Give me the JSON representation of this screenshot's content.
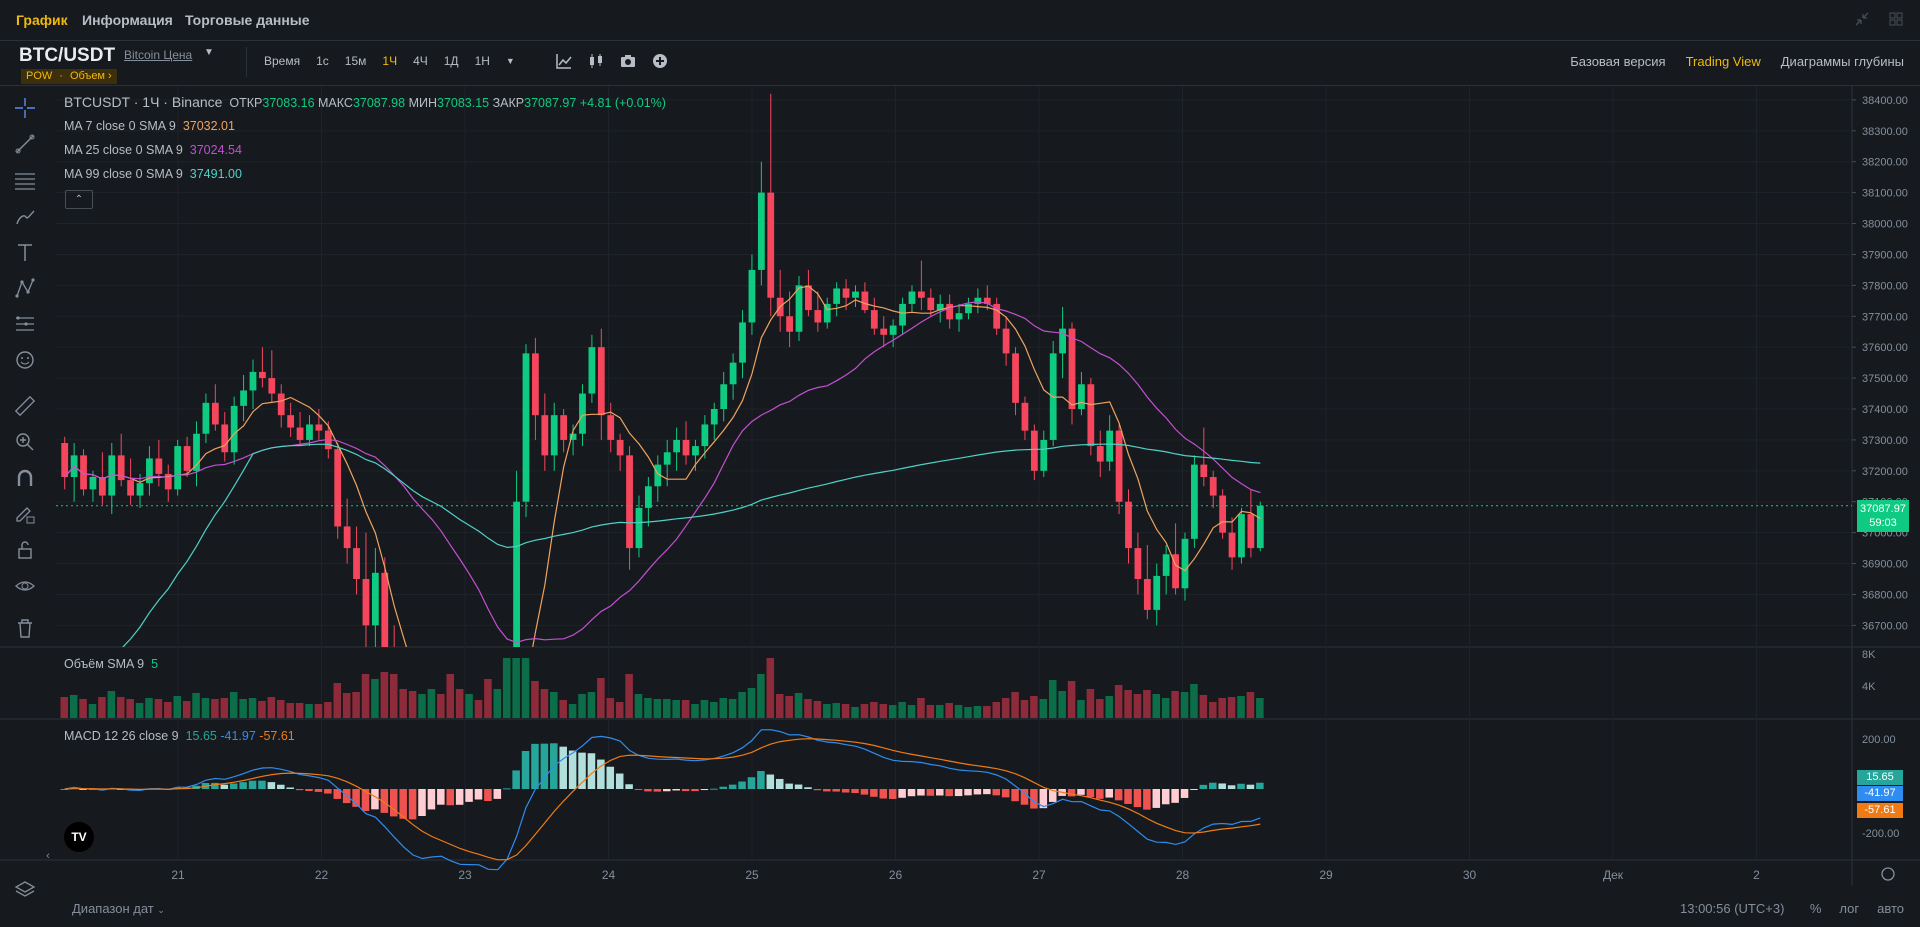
{
  "top_tabs": [
    {
      "label": "График",
      "active": true
    },
    {
      "label": "Информация",
      "active": false
    },
    {
      "label": "Торговые данные",
      "active": false
    }
  ],
  "symbol": {
    "pair": "BTC/USDT",
    "link": "Bitcoin Цена",
    "tags": [
      "POW",
      "·",
      "Объем ›"
    ]
  },
  "intervals": [
    {
      "label": "Время",
      "active": false
    },
    {
      "label": "1с",
      "active": false
    },
    {
      "label": "15м",
      "active": false
    },
    {
      "label": "1Ч",
      "active": true
    },
    {
      "label": "4Ч",
      "active": false
    },
    {
      "label": "1Д",
      "active": false
    },
    {
      "label": "1Н",
      "active": false
    }
  ],
  "views": [
    {
      "label": "Базовая версия",
      "active": false
    },
    {
      "label": "Trading View",
      "active": true
    },
    {
      "label": "Диаграммы глубины",
      "active": false
    }
  ],
  "legend": {
    "ticker": "BTCUSDT · 1Ч · Binance",
    "open_label": "ОТКР",
    "open": "37083.16",
    "high_label": "МАКС",
    "high": "37087.98",
    "low_label": "МИН",
    "low": "37083.15",
    "close_label": "ЗАКР",
    "close": "37087.97",
    "change": "+4.81 (+0.01%)",
    "ma7_label": "MA 7 close 0 SMA 9",
    "ma7_value": "37032.01",
    "ma25_label": "MA 25 close 0 SMA 9",
    "ma25_value": "37024.54",
    "ma99_label": "MA 99 close 0 SMA 9",
    "ma99_value": "37491.00",
    "collapse": "⌃",
    "volume_label": "Объём SMA 9",
    "volume_value": "5",
    "macd_label": "MACD 12 26 close 9",
    "macd_hist": "15.65",
    "macd_line": "-41.97",
    "macd_signal": "-57.61"
  },
  "price_tag": {
    "price": "37087.97",
    "countdown": "59:03"
  },
  "macd_tags": {
    "hist": "15.65",
    "macd": "-41.97",
    "signal": "-57.61"
  },
  "price_axis": [
    "38400.00",
    "38300.00",
    "38200.00",
    "38100.00",
    "38000.00",
    "37900.00",
    "37800.00",
    "37700.00",
    "37600.00",
    "37500.00",
    "37400.00",
    "37300.00",
    "37200.00",
    "37100.00",
    "37000.00",
    "36900.00",
    "36800.00",
    "36700.00"
  ],
  "volume_axis": [
    "8K",
    "4K"
  ],
  "macd_axis": [
    "200.00",
    "-200.00"
  ],
  "time_axis": [
    "21",
    "22",
    "23",
    "24",
    "25",
    "26",
    "27",
    "28",
    "29",
    "30",
    "Дек",
    "2"
  ],
  "bottom": {
    "date_range": "Диапазон дат",
    "clock": "13:00:56 (UTC+3)",
    "scale_buttons": [
      "%",
      "лог",
      "авто"
    ]
  },
  "colors": {
    "up": "#0ecb81",
    "down": "#f6465d",
    "ma7": "#f0a35e",
    "ma25": "#c44fd1",
    "ma99": "#4fd1c5",
    "accent": "#f0b90b",
    "macd": "#2f8cf0",
    "signal": "#f07b15"
  },
  "chart_data": {
    "type": "candlestick",
    "interval": "1h",
    "price_range": [
      36630,
      38445
    ],
    "candles_ohlc": [
      [
        37290,
        37310,
        37140,
        37180
      ],
      [
        37180,
        37290,
        37100,
        37250
      ],
      [
        37250,
        37270,
        37120,
        37140
      ],
      [
        37140,
        37200,
        37100,
        37180
      ],
      [
        37180,
        37260,
        37090,
        37120
      ],
      [
        37120,
        37290,
        37060,
        37250
      ],
      [
        37250,
        37320,
        37150,
        37170
      ],
      [
        37170,
        37240,
        37090,
        37120
      ],
      [
        37120,
        37190,
        37080,
        37160
      ],
      [
        37160,
        37280,
        37120,
        37240
      ],
      [
        37240,
        37300,
        37150,
        37190
      ],
      [
        37190,
        37220,
        37100,
        37140
      ],
      [
        37140,
        37300,
        37120,
        37280
      ],
      [
        37280,
        37310,
        37180,
        37200
      ],
      [
        37200,
        37360,
        37150,
        37320
      ],
      [
        37320,
        37450,
        37290,
        37420
      ],
      [
        37420,
        37480,
        37330,
        37350
      ],
      [
        37350,
        37390,
        37230,
        37260
      ],
      [
        37260,
        37440,
        37220,
        37410
      ],
      [
        37410,
        37510,
        37360,
        37460
      ],
      [
        37460,
        37560,
        37400,
        37520
      ],
      [
        37520,
        37600,
        37470,
        37500
      ],
      [
        37500,
        37590,
        37420,
        37450
      ],
      [
        37450,
        37480,
        37340,
        37380
      ],
      [
        37380,
        37420,
        37310,
        37340
      ],
      [
        37340,
        37390,
        37280,
        37300
      ],
      [
        37300,
        37380,
        37280,
        37350
      ],
      [
        37350,
        37400,
        37300,
        37330
      ],
      [
        37330,
        37360,
        37240,
        37270
      ],
      [
        37270,
        37290,
        36980,
        37020
      ],
      [
        37020,
        37110,
        36900,
        36950
      ],
      [
        36950,
        37020,
        36800,
        36850
      ],
      [
        36850,
        37000,
        36600,
        36700
      ],
      [
        36700,
        36950,
        36600,
        36870
      ],
      [
        36870,
        36920,
        36500,
        36550
      ],
      [
        36550,
        36700,
        36300,
        36400
      ],
      [
        36400,
        36500,
        36250,
        36300
      ],
      [
        36300,
        36380,
        36150,
        36250
      ],
      [
        36250,
        36400,
        36200,
        36350
      ],
      [
        36350,
        36550,
        36300,
        36500
      ],
      [
        36500,
        36600,
        36400,
        36450
      ],
      [
        36450,
        36500,
        36100,
        36180
      ],
      [
        36180,
        36300,
        36050,
        36150
      ],
      [
        36150,
        36280,
        36080,
        36220
      ],
      [
        36220,
        36260,
        36120,
        36180
      ],
      [
        36180,
        36250,
        35900,
        35950
      ],
      [
        35950,
        36100,
        35850,
        36050
      ],
      [
        36050,
        36600,
        36000,
        36500
      ],
      [
        36500,
        37200,
        36450,
        37100
      ],
      [
        37100,
        37610,
        37050,
        37580
      ],
      [
        37580,
        37630,
        37300,
        37380
      ],
      [
        37380,
        37450,
        37200,
        37250
      ],
      [
        37250,
        37420,
        37200,
        37380
      ],
      [
        37380,
        37400,
        37260,
        37300
      ],
      [
        37300,
        37350,
        37250,
        37320
      ],
      [
        37320,
        37480,
        37280,
        37450
      ],
      [
        37450,
        37640,
        37420,
        37600
      ],
      [
        37600,
        37660,
        37300,
        37380
      ],
      [
        37380,
        37420,
        37260,
        37300
      ],
      [
        37300,
        37320,
        37200,
        37250
      ],
      [
        37250,
        37280,
        36880,
        36950
      ],
      [
        36950,
        37120,
        36920,
        37080
      ],
      [
        37080,
        37180,
        37020,
        37150
      ],
      [
        37150,
        37250,
        37100,
        37220
      ],
      [
        37220,
        37300,
        37150,
        37260
      ],
      [
        37260,
        37340,
        37200,
        37300
      ],
      [
        37300,
        37360,
        37220,
        37250
      ],
      [
        37250,
        37300,
        37200,
        37280
      ],
      [
        37280,
        37380,
        37240,
        37350
      ],
      [
        37350,
        37420,
        37300,
        37400
      ],
      [
        37400,
        37520,
        37360,
        37480
      ],
      [
        37480,
        37580,
        37430,
        37550
      ],
      [
        37550,
        37720,
        37500,
        37680
      ],
      [
        37680,
        37900,
        37640,
        37850
      ],
      [
        37850,
        38200,
        37800,
        38100
      ],
      [
        38100,
        38420,
        37700,
        37760
      ],
      [
        37760,
        37850,
        37650,
        37700
      ],
      [
        37700,
        37780,
        37600,
        37650
      ],
      [
        37650,
        37830,
        37620,
        37800
      ],
      [
        37800,
        37850,
        37700,
        37720
      ],
      [
        37720,
        37780,
        37650,
        37680
      ],
      [
        37680,
        37760,
        37660,
        37740
      ],
      [
        37740,
        37810,
        37700,
        37790
      ],
      [
        37790,
        37820,
        37720,
        37760
      ],
      [
        37760,
        37800,
        37730,
        37780
      ],
      [
        37780,
        37810,
        37710,
        37720
      ],
      [
        37720,
        37760,
        37640,
        37660
      ],
      [
        37660,
        37700,
        37600,
        37640
      ],
      [
        37640,
        37690,
        37600,
        37670
      ],
      [
        37670,
        37760,
        37640,
        37740
      ],
      [
        37740,
        37800,
        37710,
        37780
      ],
      [
        37780,
        37880,
        37720,
        37760
      ],
      [
        37760,
        37790,
        37700,
        37720
      ],
      [
        37720,
        37770,
        37680,
        37740
      ],
      [
        37740,
        37770,
        37660,
        37690
      ],
      [
        37690,
        37740,
        37650,
        37710
      ],
      [
        37710,
        37760,
        37690,
        37740
      ],
      [
        37740,
        37790,
        37710,
        37760
      ],
      [
        37760,
        37800,
        37720,
        37740
      ],
      [
        37740,
        37760,
        37640,
        37660
      ],
      [
        37660,
        37700,
        37540,
        37580
      ],
      [
        37580,
        37600,
        37380,
        37420
      ],
      [
        37420,
        37440,
        37300,
        37330
      ],
      [
        37330,
        37350,
        37170,
        37200
      ],
      [
        37200,
        37330,
        37180,
        37300
      ],
      [
        37300,
        37620,
        37280,
        37580
      ],
      [
        37580,
        37730,
        37500,
        37660
      ],
      [
        37660,
        37680,
        37350,
        37400
      ],
      [
        37400,
        37520,
        37380,
        37480
      ],
      [
        37480,
        37500,
        37250,
        37280
      ],
      [
        37280,
        37330,
        37180,
        37230
      ],
      [
        37230,
        37380,
        37200,
        37330
      ],
      [
        37330,
        37350,
        37060,
        37100
      ],
      [
        37100,
        37140,
        36900,
        36950
      ],
      [
        36950,
        37000,
        36800,
        36850
      ],
      [
        36850,
        36960,
        36720,
        36750
      ],
      [
        36750,
        36900,
        36700,
        36860
      ],
      [
        36860,
        36960,
        36800,
        36930
      ],
      [
        36930,
        37030,
        36800,
        36820
      ],
      [
        36820,
        37000,
        36780,
        36980
      ],
      [
        36980,
        37250,
        36950,
        37220
      ],
      [
        37220,
        37340,
        37150,
        37180
      ],
      [
        37180,
        37200,
        37080,
        37120
      ],
      [
        37120,
        37140,
        36980,
        37000
      ],
      [
        37000,
        37050,
        36880,
        36920
      ],
      [
        36920,
        37080,
        36900,
        37060
      ],
      [
        37060,
        37140,
        36920,
        36950
      ],
      [
        36950,
        37100,
        36940,
        37087
      ]
    ],
    "volume_scale_ticks": [
      "8K",
      "4K"
    ],
    "macd_scale_ticks": [
      "200.00",
      "-200.00"
    ]
  }
}
